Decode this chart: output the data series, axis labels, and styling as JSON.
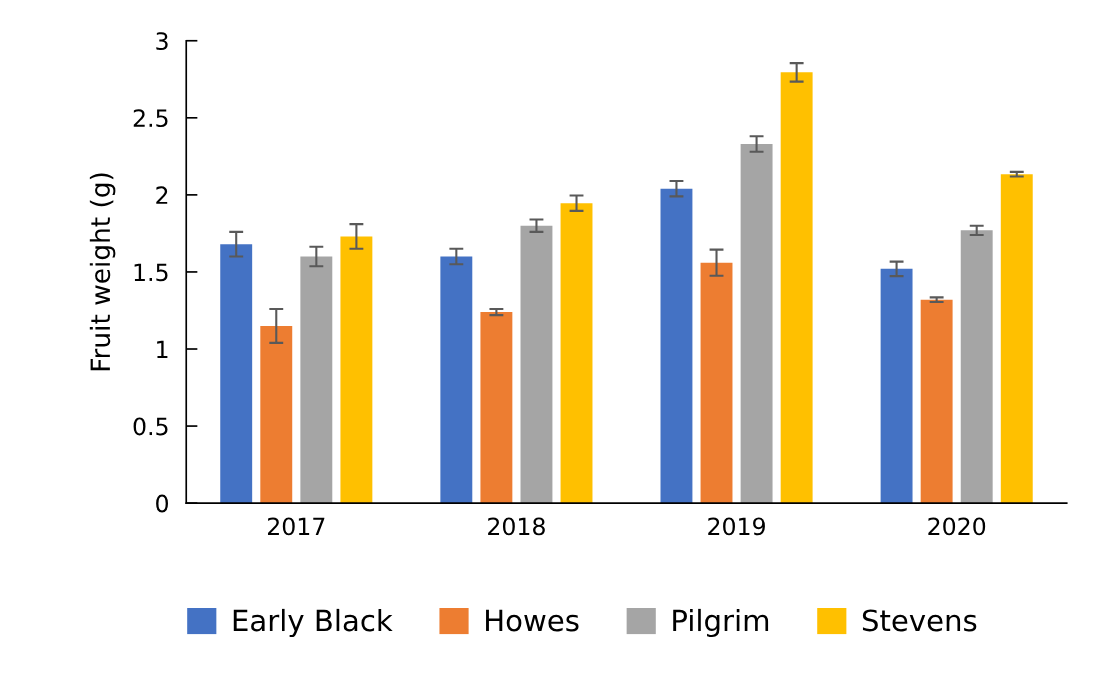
{
  "chart_data": {
    "type": "bar",
    "ylabel": "Fruit weight (g)",
    "categories": [
      "2017",
      "2018",
      "2019",
      "2020"
    ],
    "series": [
      {
        "name": "Early Black",
        "color": "#4472c4",
        "values": [
          1.68,
          1.6,
          2.04,
          1.52
        ],
        "errors": [
          0.08,
          0.05,
          0.05,
          0.047
        ]
      },
      {
        "name": "Howes",
        "color": "#ed7d31",
        "values": [
          1.15,
          1.24,
          1.56,
          1.32
        ],
        "errors": [
          0.11,
          0.02,
          0.085,
          0.015
        ]
      },
      {
        "name": "Pilgrim",
        "color": "#a5a5a5",
        "values": [
          1.6,
          1.8,
          2.33,
          1.77
        ],
        "errors": [
          0.063,
          0.04,
          0.05,
          0.03
        ]
      },
      {
        "name": "Stevens",
        "color": "#ffc000",
        "values": [
          1.73,
          1.946,
          2.795,
          2.134
        ],
        "errors": [
          0.08,
          0.05,
          0.06,
          0.015
        ]
      }
    ],
    "ylim": [
      0,
      3
    ],
    "yticks": [
      0,
      0.5,
      1,
      1.5,
      2,
      2.5,
      3
    ],
    "grid": false,
    "legend": "bottom"
  }
}
